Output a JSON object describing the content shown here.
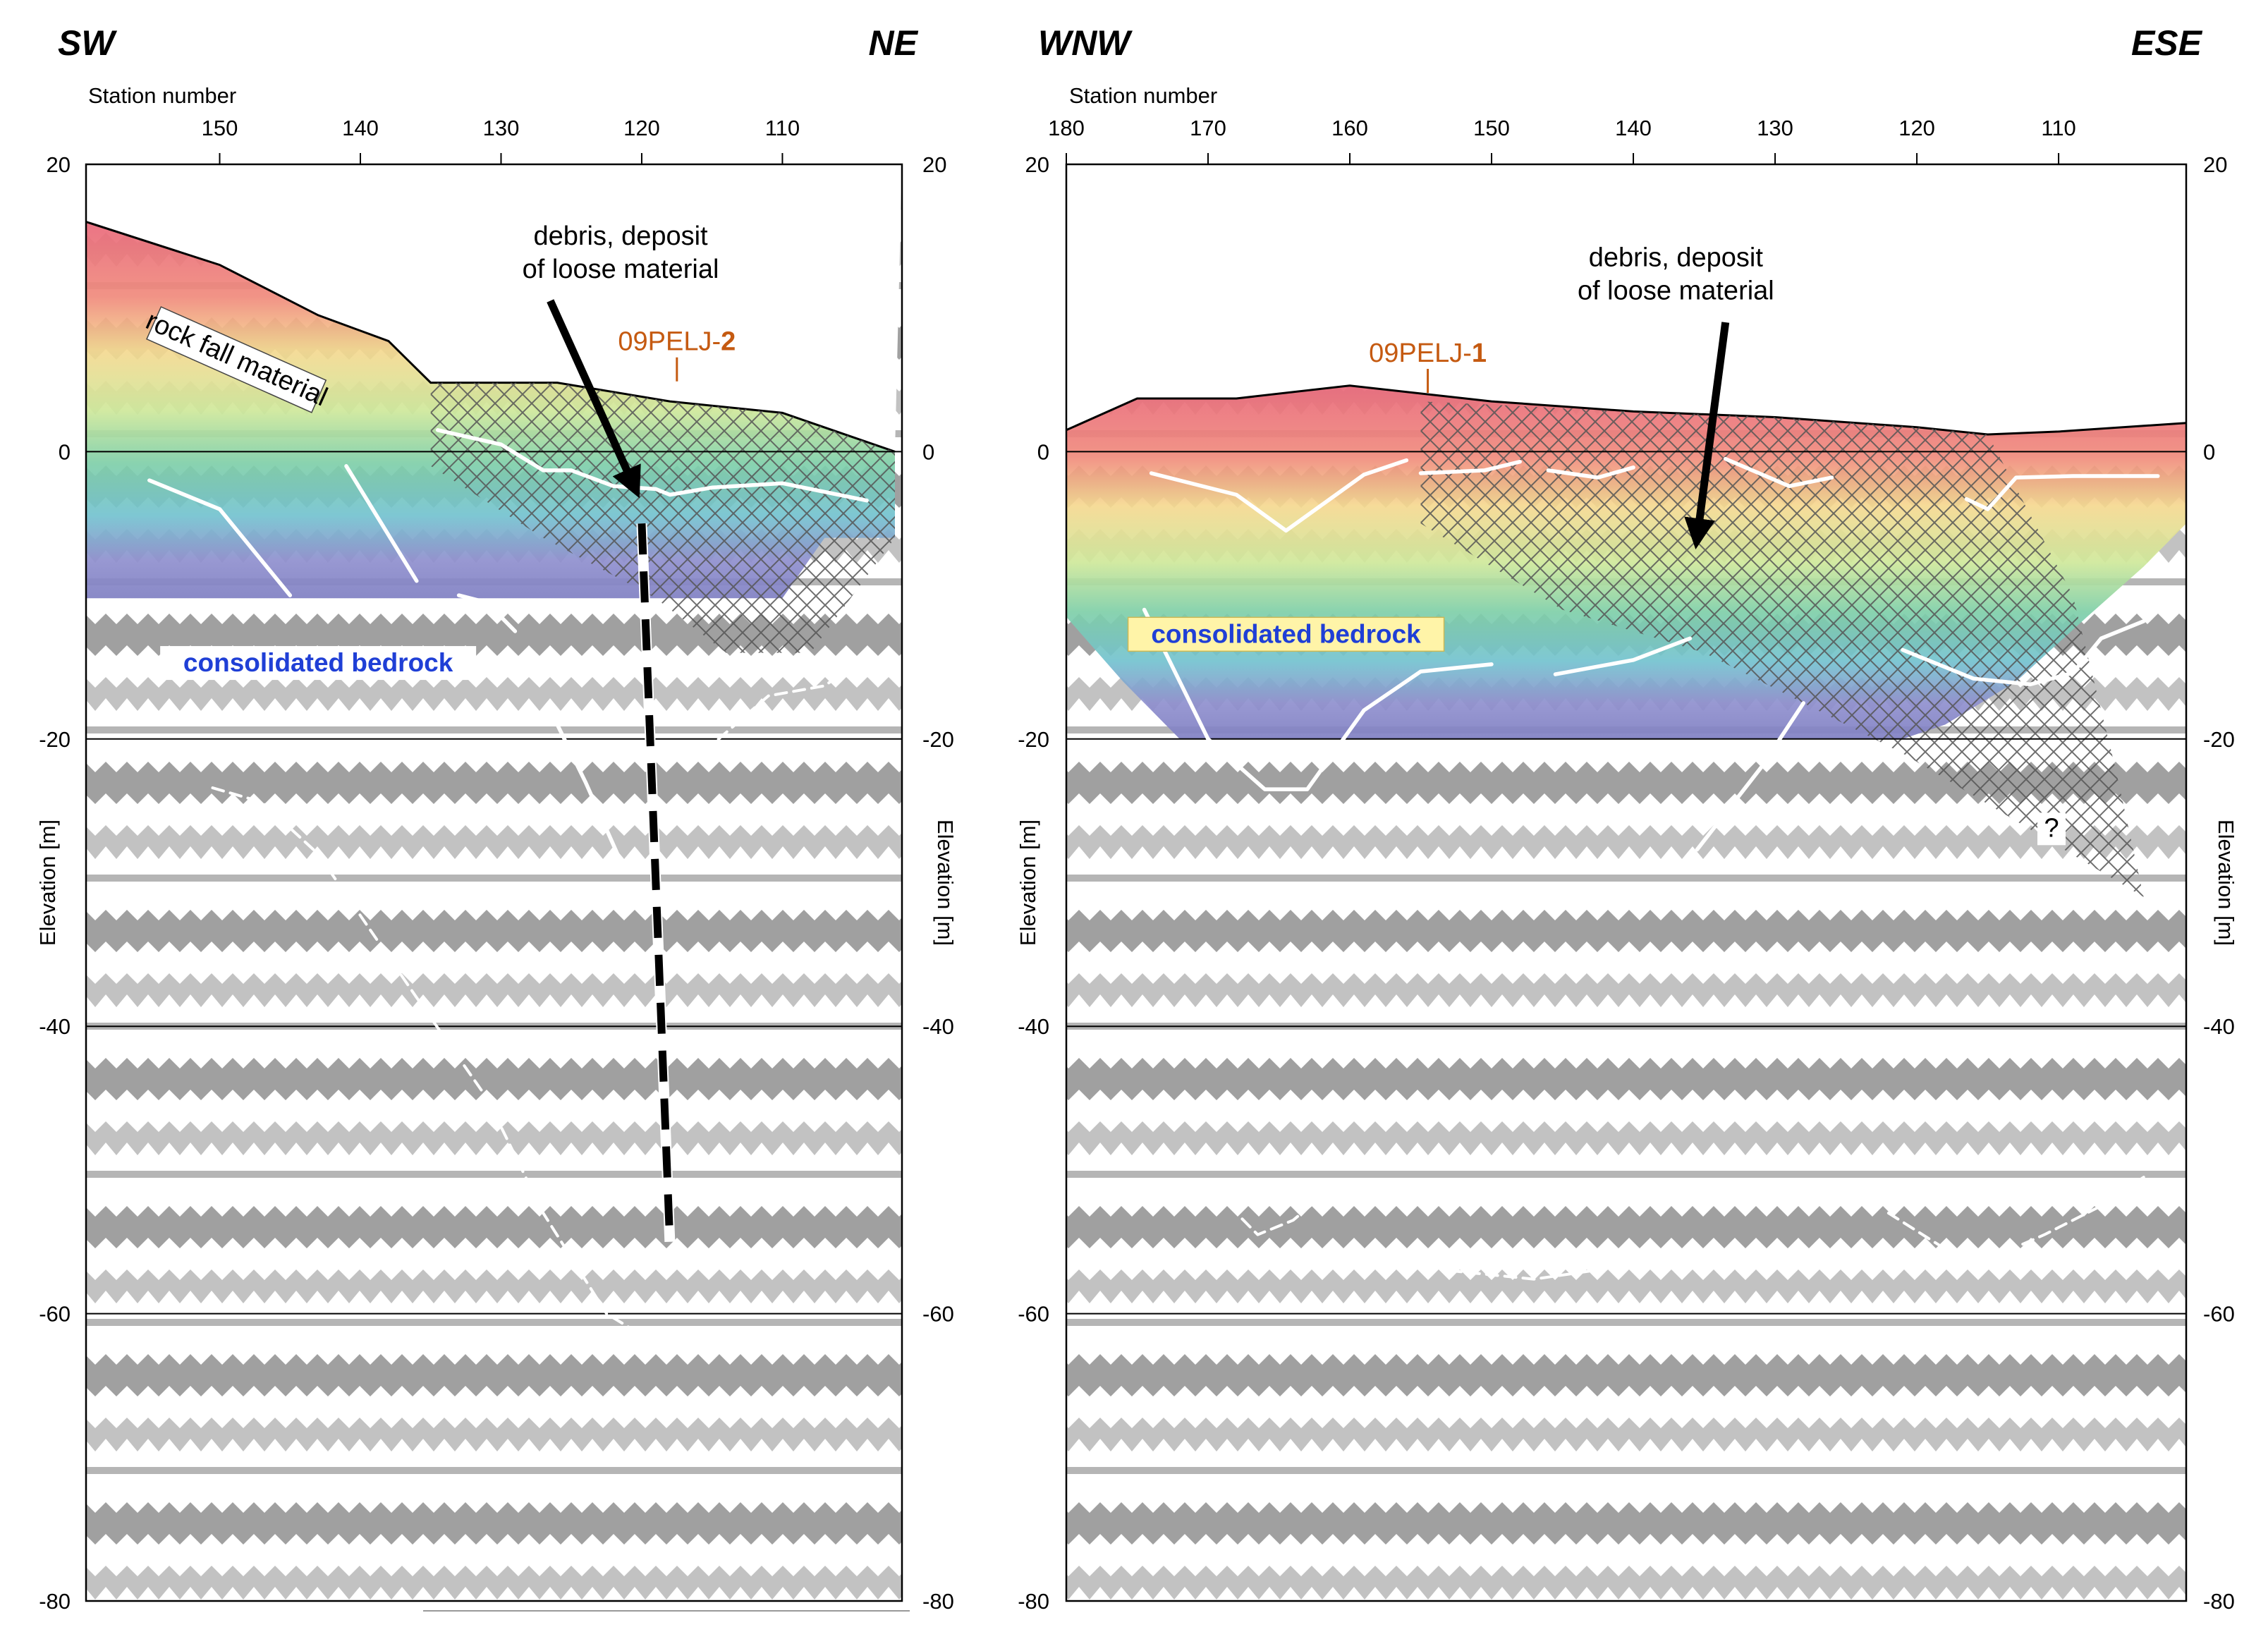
{
  "chart_data": [
    {
      "type": "line",
      "title": "",
      "direction_left": "SW",
      "direction_right": "NE",
      "xlabel": "Station number",
      "ylabel_left": "Elevation [m]",
      "ylabel_right": "Elevation [m]",
      "xlim": [
        159.5,
        101.5
      ],
      "ylim": [
        -80,
        20
      ],
      "x_ticks": [
        150,
        140,
        130,
        120,
        110
      ],
      "y_ticks": [
        20,
        0,
        -20,
        -40,
        -60,
        -80
      ],
      "grid_y": [
        0,
        -20,
        -40,
        -60
      ],
      "topography": {
        "name": "Surface",
        "x": [
          159.5,
          150,
          143,
          138,
          135,
          126,
          118,
          110,
          102
        ],
        "y": [
          16,
          13,
          9.5,
          7.7,
          4.8,
          4.8,
          3.5,
          2.7,
          0
        ]
      },
      "resistivity_bottom": {
        "x": [
          159.5,
          110,
          107,
          102
        ],
        "y": [
          -10.2,
          -10.2,
          -6,
          -6
        ]
      },
      "borehole": {
        "label_prefix": "09PELJ-",
        "label_number": "2",
        "x": 117.5,
        "y": 4.5
      },
      "annotations": [
        {
          "text": "debris, deposit",
          "x": 121.5,
          "y": 14.4
        },
        {
          "text": "of loose material",
          "x": 121.5,
          "y": 12.1
        },
        {
          "text": "rock fall material",
          "x": 149,
          "y": 6
        },
        {
          "text": "consolidated bedrock",
          "x": 143,
          "y": -15.3
        }
      ],
      "arrow": {
        "from": [
          126.5,
          10.5
        ],
        "to": [
          120.5,
          -2.5
        ]
      },
      "fault": {
        "x": [
          120,
          118
        ],
        "y": [
          -5,
          -55
        ]
      },
      "interpreted_lines": [
        {
          "style": "solid",
          "x": [
            155,
            150,
            145
          ],
          "y": [
            -2,
            -4,
            -10
          ]
        },
        {
          "style": "solid",
          "x": [
            141,
            136
          ],
          "y": [
            -1,
            -9
          ]
        },
        {
          "style": "solid",
          "x": [
            133,
            131,
            129
          ],
          "y": [
            -10,
            -10.5,
            -12.5
          ]
        },
        {
          "style": "solid",
          "x": [
            126.5,
            124,
            121.5
          ],
          "y": [
            -18,
            -23,
            -28.5
          ]
        },
        {
          "style": "solid",
          "x": [
            134.5,
            130,
            127,
            125,
            122,
            119,
            118,
            115,
            110,
            104
          ],
          "y": [
            1.5,
            0.5,
            -1.3,
            -1.3,
            -2.4,
            -2.6,
            -3,
            -2.5,
            -2.2,
            -3.4
          ]
        },
        {
          "style": "dashed",
          "x": [
            117,
            115,
            111,
            107,
            104
          ],
          "y": [
            -20.2,
            -20.4,
            -17,
            -16.3,
            -14.2
          ]
        },
        {
          "style": "dashed",
          "x": [
            150.5,
            147,
            143,
            136,
            131,
            127,
            122.5,
            120.5
          ],
          "y": [
            -23.4,
            -24.4,
            -28,
            -38,
            -45,
            -53,
            -60,
            -61.2
          ]
        }
      ]
    },
    {
      "type": "line",
      "title": "",
      "direction_left": "WNW",
      "direction_right": "ESE",
      "xlabel": "Station number",
      "ylabel_left": "Elevation [m]",
      "ylabel_right": "Elevation [m]",
      "xlim": [
        180,
        101
      ],
      "ylim": [
        -80,
        20
      ],
      "x_ticks": [
        180,
        170,
        160,
        150,
        140,
        130,
        120,
        110
      ],
      "y_ticks": [
        20,
        0,
        -20,
        -40,
        -60,
        -80
      ],
      "grid_y": [
        0,
        -20,
        -40,
        -60
      ],
      "topography": {
        "name": "Surface",
        "x": [
          180,
          175,
          168,
          160,
          150,
          140,
          130,
          120,
          115,
          110,
          101
        ],
        "y": [
          1.5,
          3.7,
          3.7,
          4.6,
          3.5,
          2.8,
          2.4,
          1.7,
          1.2,
          1.4,
          2
        ]
      },
      "resistivity_bottom": {
        "x": [
          180,
          176,
          172,
          160,
          140,
          121,
          118,
          113,
          108,
          104,
          101
        ],
        "y": [
          -11.5,
          -16,
          -20,
          -20,
          -20,
          -20,
          -19,
          -16,
          -11.5,
          -8,
          -5
        ]
      },
      "borehole": {
        "label_prefix": "09PELJ-",
        "label_number": "1",
        "x": 154.5,
        "y": 3.7
      },
      "annotations": [
        {
          "text": "debris, deposit",
          "x": 137,
          "y": 12.9
        },
        {
          "text": "of loose material",
          "x": 137,
          "y": 10.6
        },
        {
          "text": "consolidated bedrock",
          "x": 164.5,
          "y": -13.3
        },
        {
          "text": "?",
          "x": 110.5,
          "y": -26.8
        }
      ],
      "arrow": {
        "from": [
          133.5,
          9
        ],
        "to": [
          135.5,
          -6
        ]
      },
      "interpreted_lines": [
        {
          "style": "solid",
          "x": [
            174,
            168,
            164.5,
            159,
            156
          ],
          "y": [
            -1.5,
            -3,
            -5.5,
            -1.6,
            -0.6
          ]
        },
        {
          "style": "solid",
          "x": [
            155,
            150.5,
            148
          ],
          "y": [
            -1.5,
            -1.3,
            -0.7
          ]
        },
        {
          "style": "solid",
          "x": [
            146,
            142.5,
            140
          ],
          "y": [
            -1.3,
            -1.8,
            -1.1
          ]
        },
        {
          "style": "solid",
          "x": [
            133.5,
            129,
            126
          ],
          "y": [
            -0.5,
            -2.4,
            -1.8
          ]
        },
        {
          "style": "solid",
          "x": [
            116.5,
            115,
            113,
            109,
            103
          ],
          "y": [
            -3.3,
            -4,
            -1.8,
            -1.7,
            -1.7
          ]
        },
        {
          "style": "solid",
          "x": [
            174.5,
            170,
            166,
            163,
            159,
            155,
            150
          ],
          "y": [
            -11,
            -20,
            -23.5,
            -23.5,
            -18,
            -15.3,
            -14.8
          ]
        },
        {
          "style": "solid",
          "x": [
            145.5,
            140,
            136
          ],
          "y": [
            -15.5,
            -14.5,
            -13
          ]
        },
        {
          "style": "solid",
          "x": [
            135.5,
            131,
            128
          ],
          "y": [
            -27.7,
            -22,
            -17.5
          ]
        },
        {
          "style": "solid",
          "x": [
            121,
            116,
            112,
            109,
            107,
            104
          ],
          "y": [
            -13.8,
            -15.8,
            -16.2,
            -15.4,
            -13,
            -11.8
          ]
        },
        {
          "style": "dashed",
          "x": [
            168.5,
            166.5,
            164,
            161
          ],
          "y": [
            -52.5,
            -54.5,
            -53.5,
            -51
          ]
        },
        {
          "style": "dashed",
          "x": [
            156.5,
            153,
            147,
            140,
            134,
            129,
            127
          ],
          "y": [
            -55.5,
            -57,
            -57.6,
            -56.6,
            -55.6,
            -55.8,
            -56.3
          ]
        },
        {
          "style": "dashed",
          "x": [
            122,
            118,
            114,
            111,
            107,
            104
          ],
          "y": [
            -53,
            -55.5,
            -55.8,
            -54.5,
            -52.5,
            -50.5
          ]
        }
      ]
    }
  ]
}
